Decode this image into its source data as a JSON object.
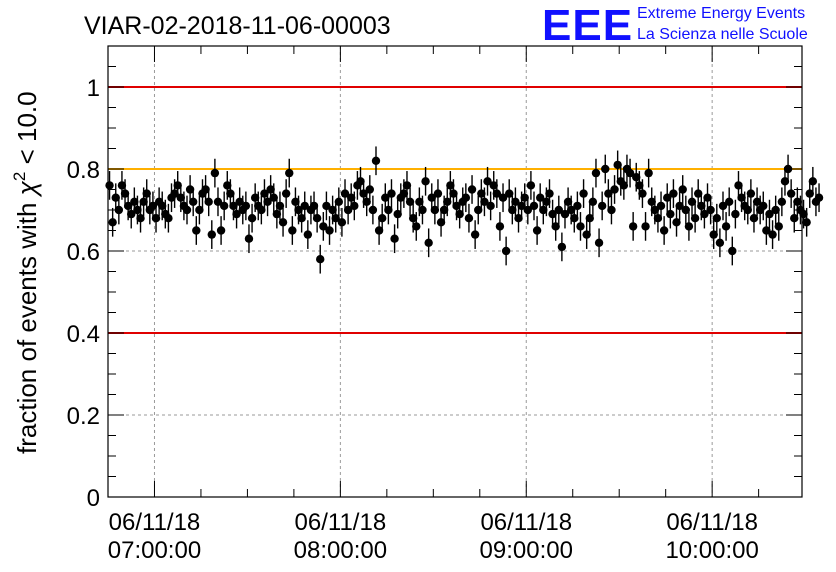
{
  "title": "VIAR-02-2018-11-06-00003",
  "logo": {
    "mark": "EEE",
    "line1": "Extreme Energy Events",
    "line2": "La Scienza nelle Scuole"
  },
  "chart_data": {
    "type": "scatter",
    "title": "VIAR-02-2018-11-06-00003",
    "xlabel": "",
    "ylabel": "fraction of events with χ² < 10.0",
    "ylabel_parts": {
      "pre": "fraction of events with ",
      "sym": "χ",
      "sup": "2",
      "post": " < 10.0"
    },
    "ylim": [
      0,
      1.1
    ],
    "xlim": [
      "06/11/18 06:45:00",
      "06/11/18 10:29:00"
    ],
    "y_ticks": [
      "0",
      "0.2",
      "0.4",
      "0.6",
      "0.8",
      "1"
    ],
    "y_tick_values": [
      0,
      0.2,
      0.4,
      0.6,
      0.8,
      1.0
    ],
    "x_ticks": [
      {
        "date": "06/11/18",
        "time": "07:00:00"
      },
      {
        "date": "06/11/18",
        "time": "08:00:00"
      },
      {
        "date": "06/11/18",
        "time": "09:00:00"
      },
      {
        "date": "06/11/18",
        "time": "10:00:00"
      }
    ],
    "x_tick_minutes": [
      420,
      480,
      540,
      600
    ],
    "reference_lines": [
      {
        "y": 1.0,
        "color": "#e00000"
      },
      {
        "y": 0.8,
        "color": "#ffb000"
      },
      {
        "y": 0.4,
        "color": "#e00000"
      }
    ],
    "grid": true,
    "series": [
      {
        "x_minutes_start": 405.5,
        "x_minutes_step": 1.0,
        "error": 0.035,
        "color": "#000000",
        "values": [
          0.76,
          0.67,
          0.73,
          0.7,
          0.76,
          0.74,
          0.71,
          0.69,
          0.72,
          0.7,
          0.68,
          0.72,
          0.74,
          0.7,
          0.71,
          0.68,
          0.72,
          0.71,
          0.69,
          0.68,
          0.73,
          0.74,
          0.76,
          0.73,
          0.71,
          0.7,
          0.75,
          0.72,
          0.65,
          0.7,
          0.74,
          0.75,
          0.72,
          0.64,
          0.79,
          0.72,
          0.65,
          0.71,
          0.76,
          0.74,
          0.71,
          0.69,
          0.72,
          0.7,
          0.71,
          0.63,
          0.68,
          0.73,
          0.71,
          0.7,
          0.74,
          0.72,
          0.75,
          0.73,
          0.69,
          0.71,
          0.67,
          0.74,
          0.79,
          0.65,
          0.72,
          0.7,
          0.68,
          0.71,
          0.64,
          0.7,
          0.71,
          0.68,
          0.58,
          0.66,
          0.71,
          0.65,
          0.7,
          0.68,
          0.72,
          0.67,
          0.74,
          0.7,
          0.73,
          0.71,
          0.76,
          0.77,
          0.74,
          0.72,
          0.75,
          0.7,
          0.82,
          0.65,
          0.68,
          0.73,
          0.7,
          0.74,
          0.63,
          0.69,
          0.73,
          0.74,
          0.76,
          0.72,
          0.68,
          0.66,
          0.72,
          0.7,
          0.77,
          0.62,
          0.73,
          0.7,
          0.74,
          0.67,
          0.7,
          0.72,
          0.76,
          0.74,
          0.71,
          0.69,
          0.72,
          0.73,
          0.68,
          0.75,
          0.64,
          0.7,
          0.74,
          0.72,
          0.77,
          0.71,
          0.76,
          0.74,
          0.66,
          0.73,
          0.6,
          0.74,
          0.7,
          0.72,
          0.68,
          0.71,
          0.73,
          0.7,
          0.76,
          0.71,
          0.65,
          0.73,
          0.7,
          0.72,
          0.74,
          0.69,
          0.66,
          0.7,
          0.61,
          0.69,
          0.72,
          0.7,
          0.68,
          0.71,
          0.66,
          0.74,
          0.64,
          0.68,
          0.72,
          0.79,
          0.62,
          0.71,
          0.8,
          0.74,
          0.7,
          0.75,
          0.81,
          0.77,
          0.76,
          0.8,
          0.79,
          0.66,
          0.78,
          0.76,
          0.74,
          0.66,
          0.79,
          0.72,
          0.7,
          0.68,
          0.71,
          0.65,
          0.73,
          0.69,
          0.74,
          0.67,
          0.71,
          0.75,
          0.7,
          0.66,
          0.72,
          0.68,
          0.74,
          0.71,
          0.69,
          0.73,
          0.7,
          0.64,
          0.68,
          0.62,
          0.71,
          0.66,
          0.72,
          0.6,
          0.69,
          0.76,
          0.73,
          0.71,
          0.7,
          0.74,
          0.68,
          0.72,
          0.7,
          0.71,
          0.65,
          0.69,
          0.64,
          0.7,
          0.66,
          0.72,
          0.77,
          0.8,
          0.74,
          0.68,
          0.72,
          0.7,
          0.69,
          0.67,
          0.74,
          0.77,
          0.72,
          0.73
        ]
      }
    ]
  }
}
